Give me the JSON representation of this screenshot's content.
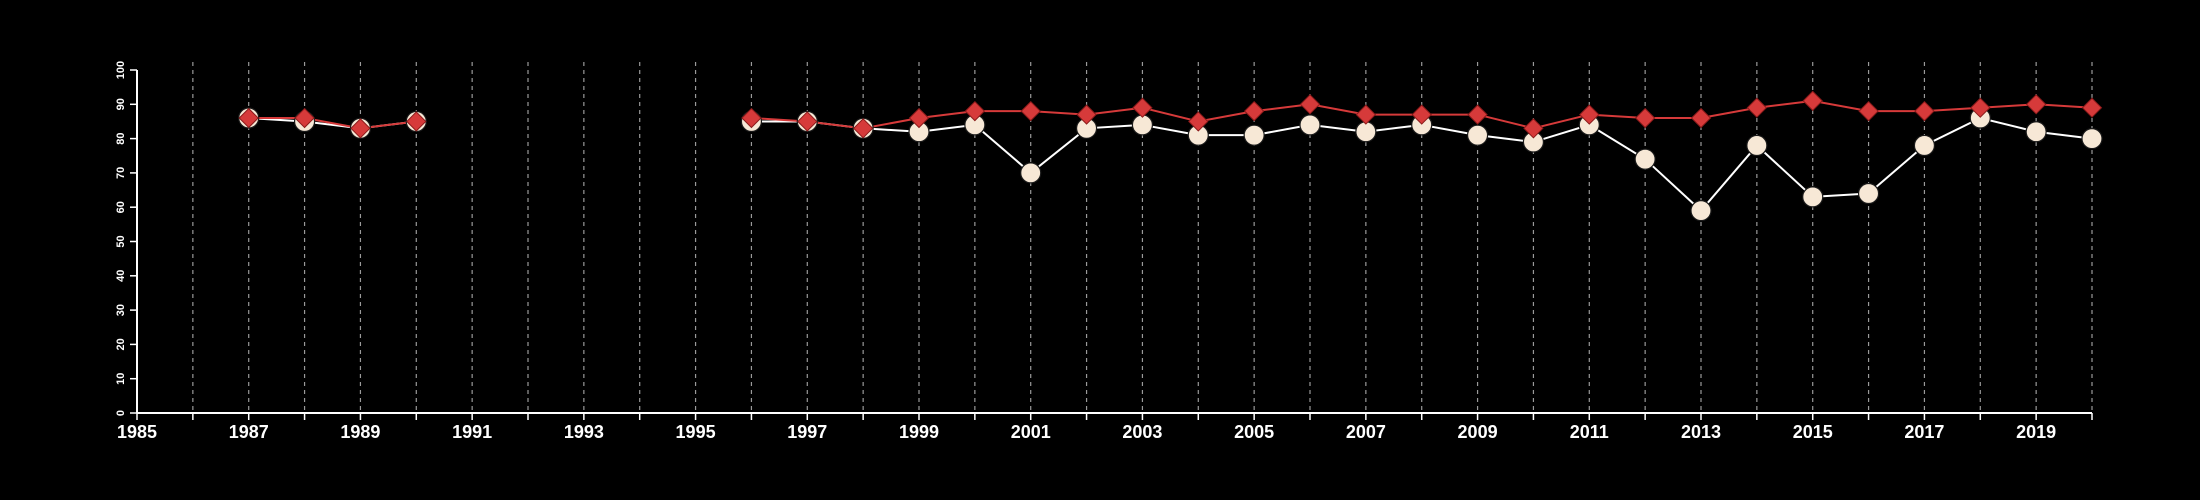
{
  "chart_data": {
    "type": "line",
    "title": "",
    "xlabel": "",
    "ylabel": "",
    "xlim": [
      1985,
      2020
    ],
    "ylim": [
      0,
      100
    ],
    "x_ticks": [
      1985,
      1987,
      1989,
      1991,
      1993,
      1995,
      1997,
      1999,
      2001,
      2003,
      2005,
      2007,
      2009,
      2011,
      2013,
      2015,
      2017,
      2019
    ],
    "y_ticks": [
      0,
      10,
      20,
      30,
      40,
      50,
      60,
      70,
      80,
      90,
      100
    ],
    "grid": "vertical-dashed-yearly",
    "legend": "none",
    "colors": {
      "background": "#000000",
      "axis": "#ffffff",
      "grid": "#9a9a9a"
    },
    "series": [
      {
        "marker": "circle",
        "line_color": "#ffffff",
        "marker_color": "#f7e8d6",
        "points": [
          [
            1987,
            86
          ],
          [
            1988,
            85
          ],
          [
            1989,
            83
          ],
          [
            1990,
            85
          ],
          [
            1996,
            85
          ],
          [
            1997,
            85
          ],
          [
            1998,
            83
          ],
          [
            1999,
            82
          ],
          [
            2000,
            84
          ],
          [
            2001,
            70
          ],
          [
            2002,
            83
          ],
          [
            2003,
            84
          ],
          [
            2004,
            81
          ],
          [
            2005,
            81
          ],
          [
            2006,
            84
          ],
          [
            2007,
            82
          ],
          [
            2008,
            84
          ],
          [
            2009,
            81
          ],
          [
            2010,
            79
          ],
          [
            2011,
            84
          ],
          [
            2012,
            74
          ],
          [
            2013,
            59
          ],
          [
            2014,
            78
          ],
          [
            2015,
            63
          ],
          [
            2016,
            64
          ],
          [
            2017,
            78
          ],
          [
            2018,
            86
          ],
          [
            2019,
            82
          ],
          [
            2020,
            80
          ]
        ]
      },
      {
        "marker": "diamond",
        "line_color": "#d63a3a",
        "marker_color": "#d63a3a",
        "points": [
          [
            1987,
            86
          ],
          [
            1988,
            86
          ],
          [
            1989,
            83
          ],
          [
            1990,
            85
          ],
          [
            1996,
            86
          ],
          [
            1997,
            85
          ],
          [
            1998,
            83
          ],
          [
            1999,
            86
          ],
          [
            2000,
            88
          ],
          [
            2001,
            88
          ],
          [
            2002,
            87
          ],
          [
            2003,
            89
          ],
          [
            2004,
            85
          ],
          [
            2005,
            88
          ],
          [
            2006,
            90
          ],
          [
            2007,
            87
          ],
          [
            2008,
            87
          ],
          [
            2009,
            87
          ],
          [
            2010,
            83
          ],
          [
            2011,
            87
          ],
          [
            2012,
            86
          ],
          [
            2013,
            86
          ],
          [
            2014,
            89
          ],
          [
            2015,
            91
          ],
          [
            2016,
            88
          ],
          [
            2017,
            88
          ],
          [
            2018,
            89
          ],
          [
            2019,
            90
          ],
          [
            2020,
            89
          ]
        ]
      }
    ]
  }
}
